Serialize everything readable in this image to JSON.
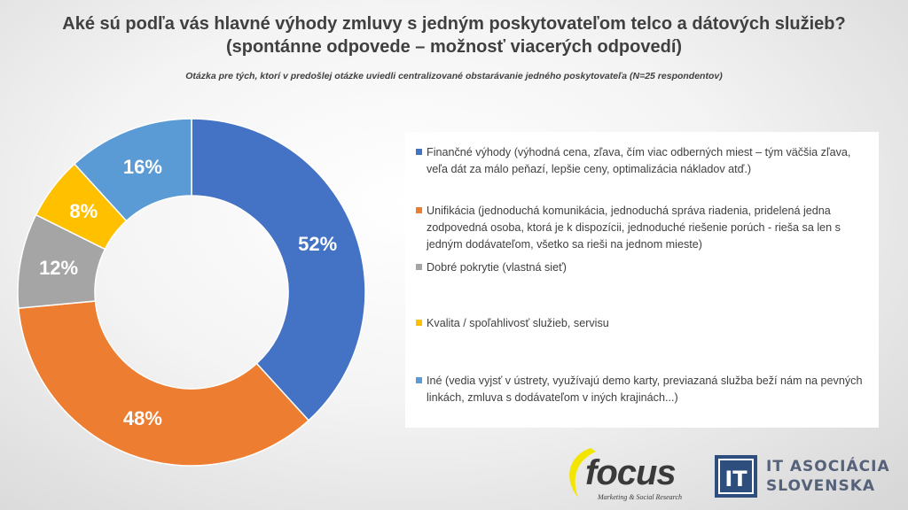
{
  "page": {
    "title_line1": "Aké sú podľa vás hlavné výhody zmluvy s jedným poskytovateľom telco a dátových služieb?",
    "title_line2": "(spontánne odpovede – možnosť viacerých odpovedí)",
    "subtitle": "Otázka pre tých, ktorí v predošlej otázke uviedli centralizované obstarávanie jedného poskytovateľa (N=25 respondentov)"
  },
  "chart_data": {
    "type": "pie",
    "variant": "donut",
    "title": "Aké sú podľa vás hlavné výhody zmluvy s jedným poskytovateľom telco a dátových služieb?",
    "categories": [
      "Finančné výhody (výhodná cena, zľava, čím viac odberných miest – tým väčšia zľava, veľa dát za málo peňazí, lepšie ceny, optimalizácia nákladov atď.)",
      "Unifikácia (jednoduchá komunikácia, jednoduchá správa riadenia, pridelená jedna zodpovedná osoba, ktorá je k dispozícii, jednoduché riešenie porúch - rieša sa len s jedným dodávateľom, všetko sa rieši na jednom mieste)",
      "Dobré pokrytie (vlastná sieť)",
      "Kvalita / spoľahlivosť služieb, servisu",
      "Iné (vedia vyjsť v ústrety, využívajú demo karty, previazaná služba beží nám na pevných linkách, zmluva s dodávateľom v iných krajinách...)"
    ],
    "values": [
      52,
      48,
      12,
      8,
      16
    ],
    "value_labels": [
      "52%",
      "48%",
      "12%",
      "8%",
      "16%"
    ],
    "colors": [
      "#4472C4",
      "#ED7D31",
      "#A5A5A5",
      "#FFC000",
      "#5B9BD5"
    ],
    "legend_position": "right"
  },
  "logos": {
    "focus": {
      "name": "focus",
      "tagline": "Marketing & Social Research"
    },
    "ita": {
      "line1": "IT ASOCIÁCIA",
      "line2": "SLOVENSKA",
      "mark": "IT"
    }
  }
}
